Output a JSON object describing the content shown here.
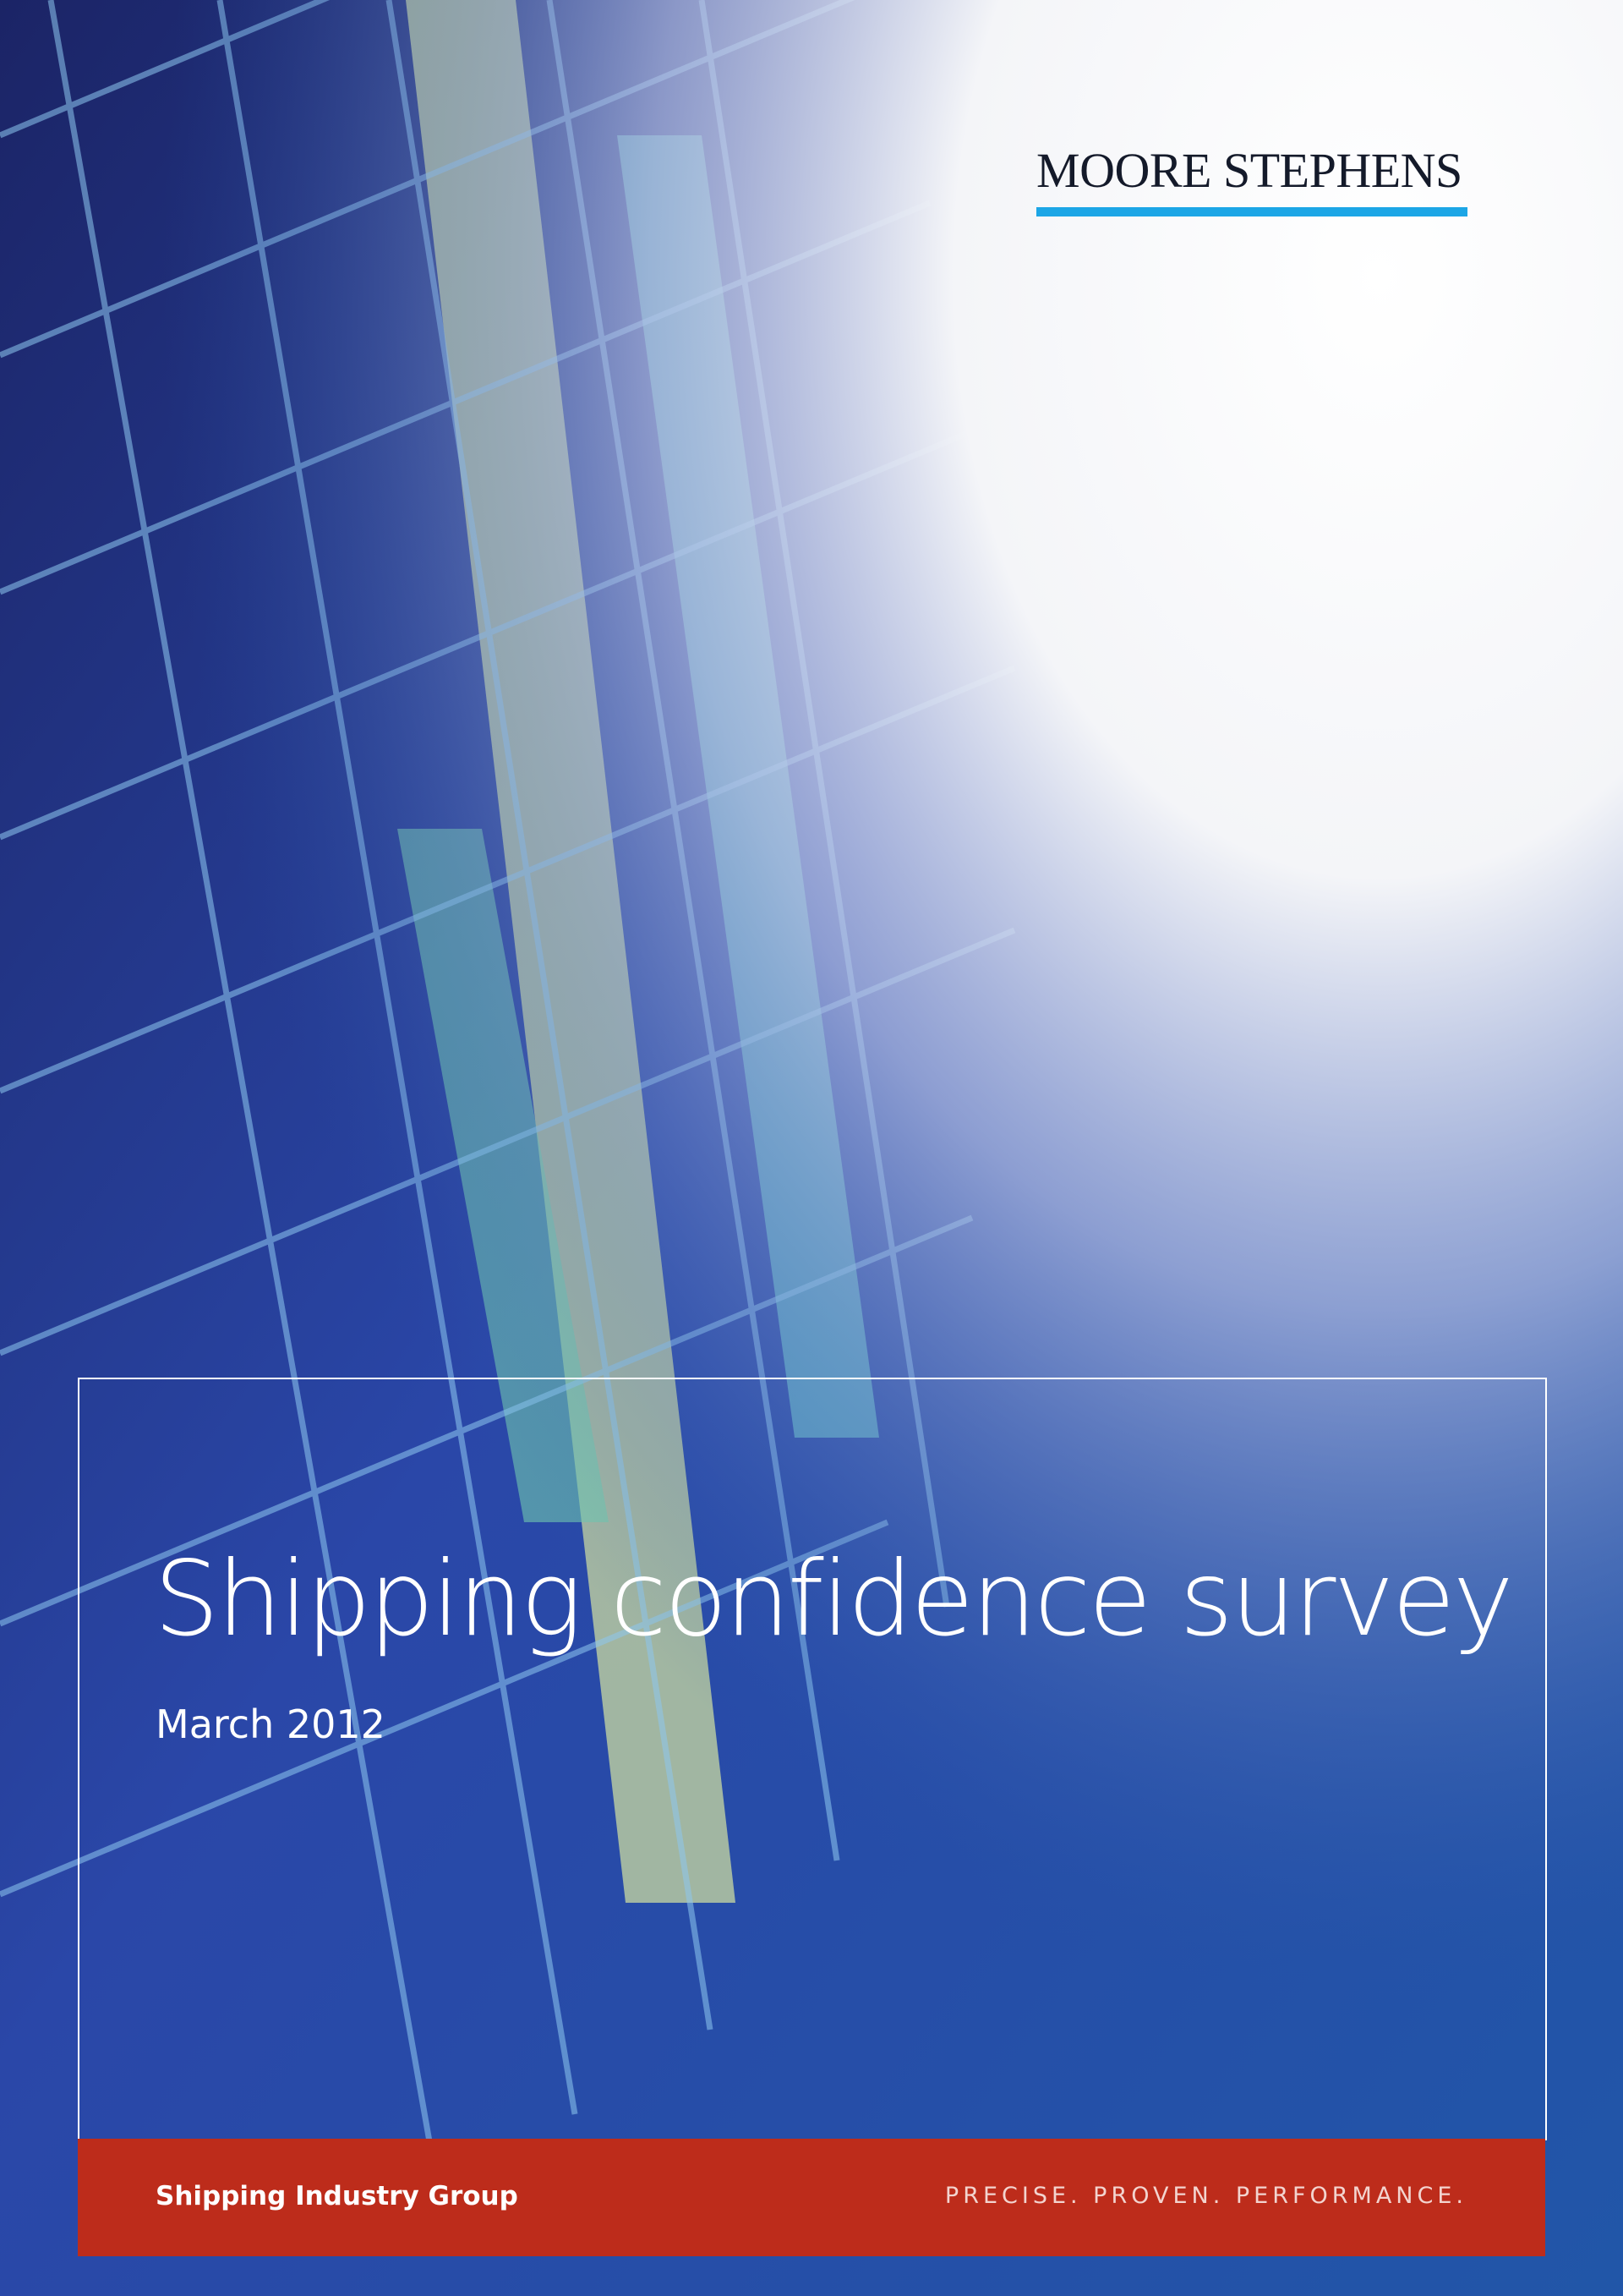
{
  "header": {
    "logo": "MOORE STEPHENS"
  },
  "cover": {
    "title": "Shipping confidence survey",
    "subtitle": "March 2012"
  },
  "footer": {
    "group": "Shipping Industry Group",
    "tagline": "PRECISE. PROVEN. PERFORMANCE."
  }
}
